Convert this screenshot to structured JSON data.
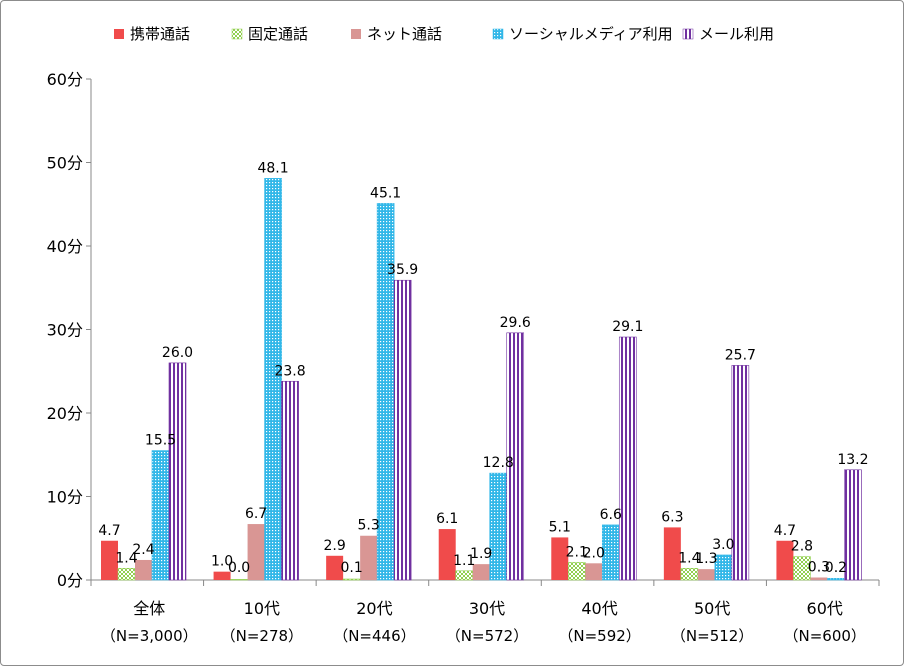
{
  "chart_data": {
    "type": "bar",
    "categories": [
      "全体",
      "10代",
      "20代",
      "30代",
      "40代",
      "50代",
      "60代"
    ],
    "category_sublabels": [
      "（N=3,000）",
      "（N=278）",
      "（N=446）",
      "（N=572）",
      "（N=592）",
      "（N=512）",
      "（N=600）"
    ],
    "series": [
      {
        "name": "携帯通話",
        "color": "#f04b4b",
        "pattern": "solid",
        "values": [
          4.7,
          1.0,
          2.9,
          6.1,
          5.1,
          6.3,
          4.7
        ],
        "labels": [
          "4.7",
          "1.0",
          "2.9",
          "6.1",
          "5.1",
          "6.3",
          "4.7"
        ]
      },
      {
        "name": "固定通話",
        "color": "#92d050",
        "pattern": "checker",
        "values": [
          1.4,
          0.0,
          0.1,
          1.1,
          2.1,
          1.4,
          2.8
        ],
        "labels": [
          "1.4",
          "0.0",
          "0.1",
          "1.1",
          "2.1",
          "1.4",
          "2.8"
        ]
      },
      {
        "name": "ネット通話",
        "color": "#d99694",
        "pattern": "solid",
        "values": [
          2.4,
          6.7,
          5.3,
          1.9,
          2.0,
          1.3,
          0.3
        ],
        "labels": [
          "2.4",
          "6.7",
          "5.3",
          "1.9",
          "2.0",
          "1.3",
          "0.3"
        ]
      },
      {
        "name": "ソーシャルメディア利用",
        "color": "#31b7e8",
        "pattern": "dots",
        "values": [
          15.5,
          48.1,
          45.1,
          12.8,
          6.6,
          3.0,
          0.2
        ],
        "labels": [
          "15.5",
          "48.1",
          "45.1",
          "12.8",
          "6.6",
          "3.0",
          "0.2"
        ]
      },
      {
        "name": "メール利用",
        "color": "#7030a0",
        "pattern": "vstripes",
        "values": [
          26.0,
          23.8,
          35.9,
          29.6,
          29.1,
          25.7,
          13.2
        ],
        "labels": [
          "26.0",
          "23.8",
          "35.9",
          "29.6",
          "29.1",
          "25.7",
          "13.2"
        ]
      }
    ],
    "ylim": [
      0,
      60
    ],
    "y_ticks": [
      0,
      10,
      20,
      30,
      40,
      50,
      60
    ],
    "y_tick_labels": [
      "0分",
      "10分",
      "20分",
      "30分",
      "40分",
      "50分",
      "60分"
    ],
    "legend_position": "top",
    "grid": false,
    "title": "",
    "xlabel": "",
    "ylabel": ""
  }
}
